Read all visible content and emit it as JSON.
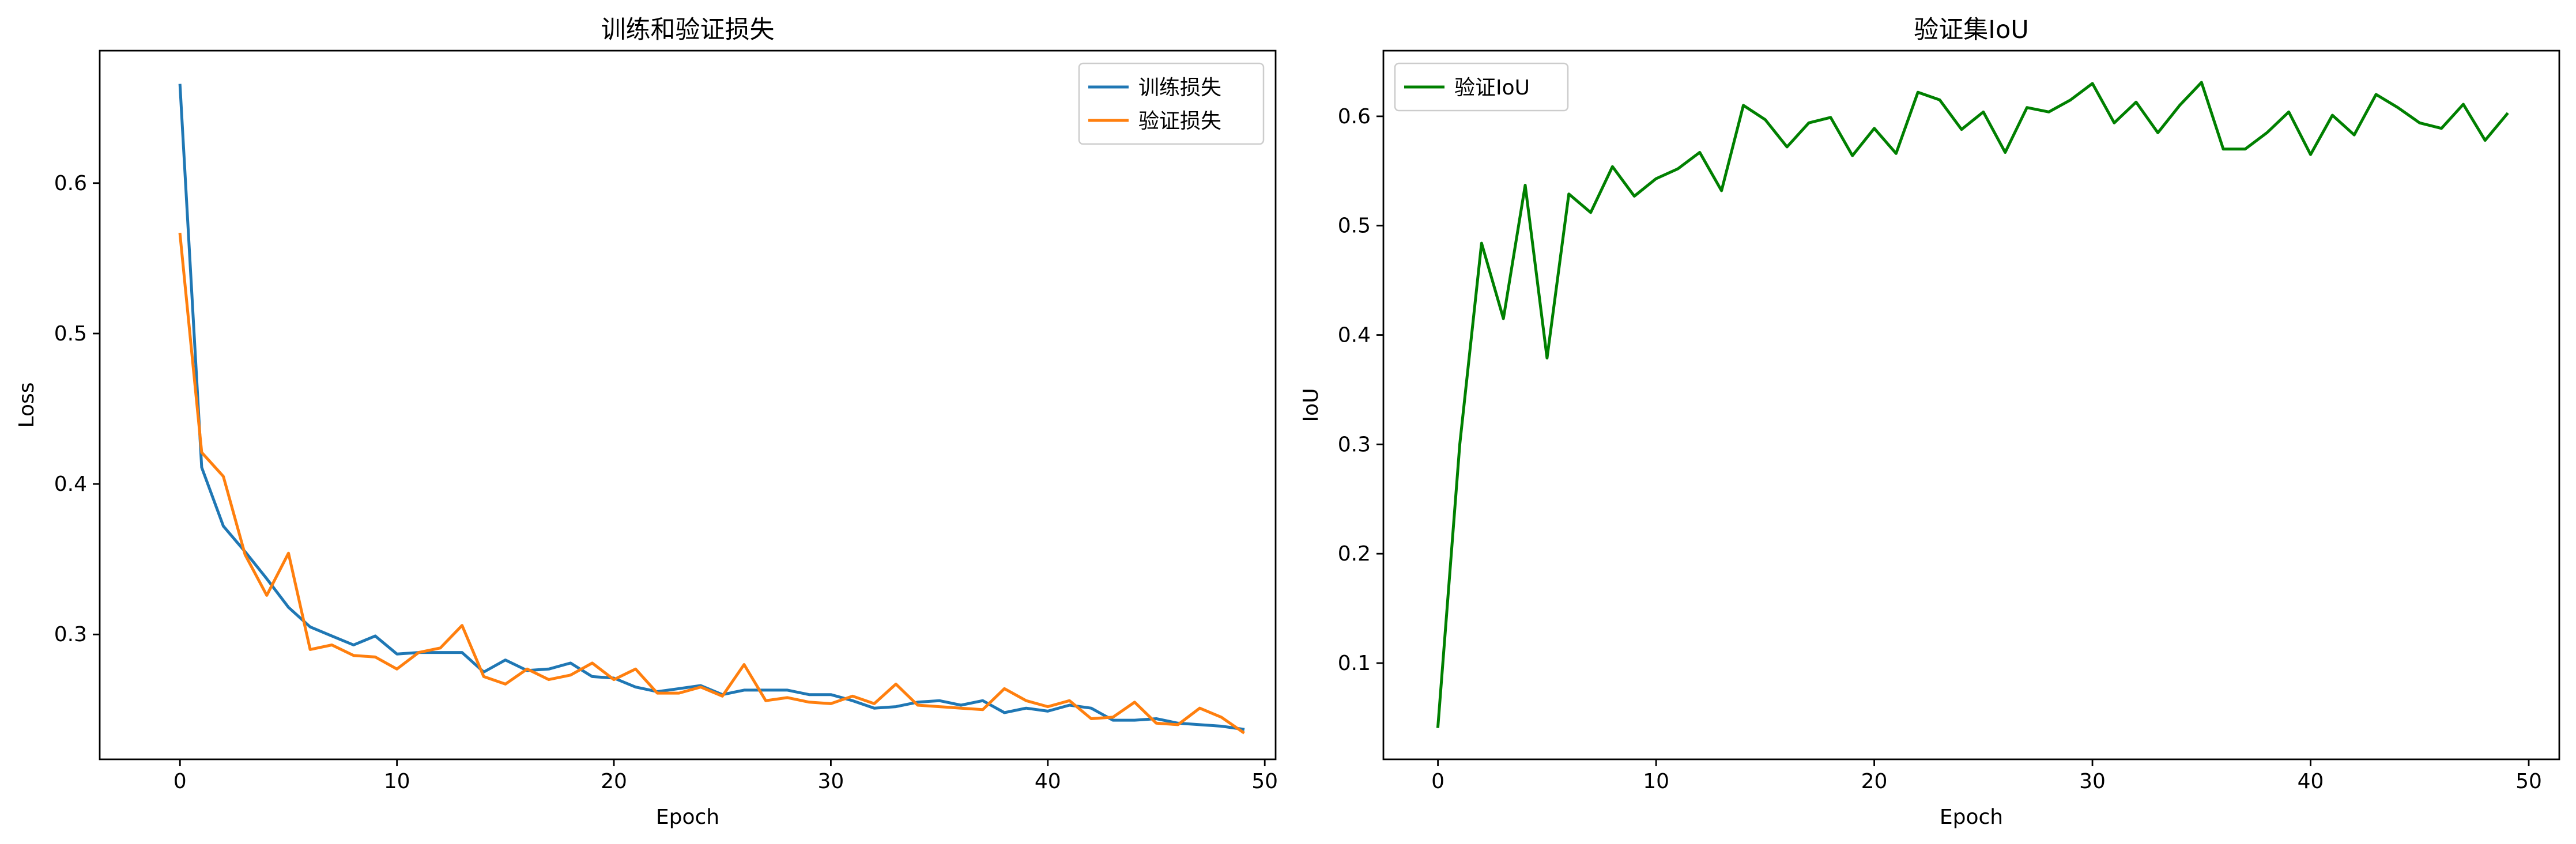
{
  "chart_data": [
    {
      "type": "line",
      "title": "训练和验证损失",
      "xlabel": "Epoch",
      "ylabel": "Loss",
      "xlim": [
        -3.7,
        50.5
      ],
      "ylim": [
        0.217,
        0.688
      ],
      "xticks": [
        0,
        10,
        20,
        30,
        40,
        50
      ],
      "yticks": [
        0.3,
        0.4,
        0.5,
        0.6
      ],
      "grid": false,
      "legend": "top-right",
      "x": [
        0,
        1,
        2,
        3,
        4,
        5,
        6,
        7,
        8,
        9,
        10,
        11,
        12,
        13,
        14,
        15,
        16,
        17,
        18,
        19,
        20,
        21,
        22,
        23,
        24,
        25,
        26,
        27,
        28,
        29,
        30,
        31,
        32,
        33,
        34,
        35,
        36,
        37,
        38,
        39,
        40,
        41,
        42,
        43,
        44,
        45,
        46,
        47,
        48,
        49
      ],
      "series": [
        {
          "name": "训练损失",
          "color": "#1f77b4",
          "values": [
            0.665,
            0.411,
            0.372,
            0.355,
            0.337,
            0.318,
            0.305,
            0.299,
            0.293,
            0.299,
            0.287,
            0.288,
            0.288,
            0.288,
            0.275,
            0.283,
            0.276,
            0.277,
            0.281,
            0.272,
            0.271,
            0.265,
            0.262,
            0.264,
            0.266,
            0.26,
            0.263,
            0.263,
            0.263,
            0.26,
            0.26,
            0.256,
            0.251,
            0.252,
            0.255,
            0.256,
            0.253,
            0.256,
            0.248,
            0.251,
            0.249,
            0.253,
            0.251,
            0.243,
            0.243,
            0.244,
            0.241,
            0.24,
            0.239,
            0.237
          ]
        },
        {
          "name": "验证损失",
          "color": "#ff7f0e",
          "values": [
            0.566,
            0.421,
            0.405,
            0.353,
            0.326,
            0.354,
            0.29,
            0.293,
            0.286,
            0.285,
            0.277,
            0.288,
            0.291,
            0.306,
            0.272,
            0.267,
            0.277,
            0.27,
            0.273,
            0.281,
            0.27,
            0.277,
            0.261,
            0.261,
            0.265,
            0.259,
            0.28,
            0.256,
            0.258,
            0.255,
            0.254,
            0.259,
            0.254,
            0.267,
            0.253,
            0.252,
            0.251,
            0.25,
            0.264,
            0.256,
            0.252,
            0.256,
            0.244,
            0.245,
            0.255,
            0.241,
            0.24,
            0.251,
            0.245,
            0.235
          ]
        }
      ]
    },
    {
      "type": "line",
      "title": "验证集IoU",
      "xlabel": "Epoch",
      "ylabel": "IoU",
      "xlim": [
        -2.5,
        51.4
      ],
      "ylim": [
        0.012,
        0.66
      ],
      "xticks": [
        0,
        10,
        20,
        30,
        40,
        50
      ],
      "yticks": [
        0.1,
        0.2,
        0.3,
        0.4,
        0.5,
        0.6
      ],
      "grid": false,
      "legend": "top-left",
      "x": [
        0,
        1,
        2,
        3,
        4,
        5,
        6,
        7,
        8,
        9,
        10,
        11,
        12,
        13,
        14,
        15,
        16,
        17,
        18,
        19,
        20,
        21,
        22,
        23,
        24,
        25,
        26,
        27,
        28,
        29,
        30,
        31,
        32,
        33,
        34,
        35,
        36,
        37,
        38,
        39,
        40,
        41,
        42,
        43,
        44,
        45,
        46,
        47,
        48,
        49
      ],
      "series": [
        {
          "name": "验证IoU",
          "color": "#008000",
          "values": [
            0.042,
            0.3,
            0.484,
            0.415,
            0.537,
            0.379,
            0.529,
            0.512,
            0.554,
            0.527,
            0.543,
            0.552,
            0.567,
            0.532,
            0.61,
            0.597,
            0.572,
            0.594,
            0.599,
            0.564,
            0.589,
            0.566,
            0.622,
            0.615,
            0.588,
            0.604,
            0.567,
            0.608,
            0.604,
            0.615,
            0.63,
            0.594,
            0.613,
            0.585,
            0.61,
            0.631,
            0.57,
            0.57,
            0.585,
            0.604,
            0.565,
            0.601,
            0.583,
            0.62,
            0.608,
            0.594,
            0.589,
            0.611,
            0.578,
            0.602
          ]
        }
      ]
    }
  ]
}
